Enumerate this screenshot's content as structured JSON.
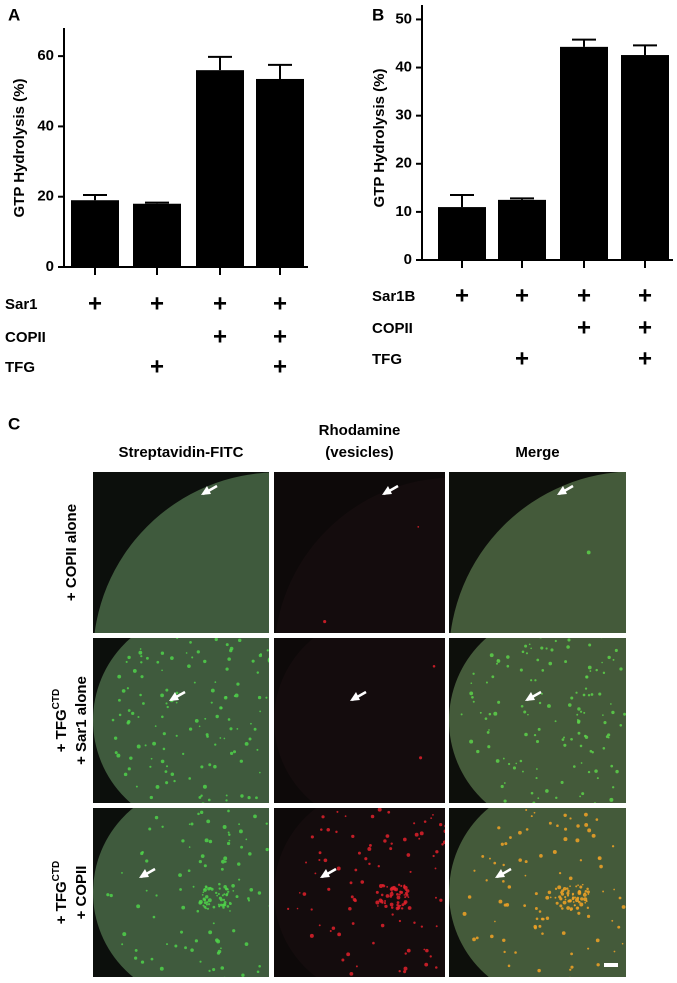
{
  "chart_data": [
    {
      "type": "bar",
      "panel": "A",
      "ylabel": "GTP Hydrolysis (%)",
      "values": [
        19,
        18,
        56,
        53.5
      ],
      "errors": [
        1.5,
        0.3,
        3.8,
        4
      ],
      "ylim": [
        0,
        68
      ],
      "yticks": [
        0,
        20,
        40,
        60
      ],
      "color": "#000000",
      "conditions": [
        {
          "label": "Sar1",
          "marks": [
            "+",
            "+",
            "+",
            "+"
          ]
        },
        {
          "label": "COPII",
          "marks": [
            null,
            null,
            "+",
            "+"
          ]
        },
        {
          "label": "TFG",
          "marks": [
            null,
            "+",
            null,
            "+"
          ]
        }
      ]
    },
    {
      "type": "bar",
      "panel": "B",
      "ylabel": "GTP Hydrolysis (%)",
      "values": [
        11,
        12.5,
        44.3,
        42.6
      ],
      "errors": [
        2.5,
        0.3,
        1.5,
        2
      ],
      "ylim": [
        0,
        53
      ],
      "yticks": [
        0,
        10,
        20,
        30,
        40,
        50
      ],
      "color": "#000000",
      "conditions": [
        {
          "label": "Sar1B",
          "marks": [
            "+",
            "+",
            "+",
            "+"
          ]
        },
        {
          "label": "COPII",
          "marks": [
            null,
            null,
            "+",
            "+"
          ]
        },
        {
          "label": "TFG",
          "marks": [
            null,
            "+",
            null,
            "+"
          ]
        }
      ]
    }
  ],
  "panel_c": {
    "label": "C",
    "columns": [
      [
        "Streptavidin-FITC"
      ],
      [
        "Rhodamine",
        "(vesicles)"
      ],
      [
        "Merge"
      ]
    ],
    "rows": [
      {
        "line1": {
          "text": "+ COPII alone",
          "sup": null
        },
        "line2": null
      },
      {
        "line1": {
          "text": "+ TFG",
          "sup": "CTD"
        },
        "line2": "+ Sar1 alone"
      },
      {
        "line1": {
          "text": "+ TFG",
          "sup": "CTD"
        },
        "line2": "+ COPII"
      }
    ]
  }
}
